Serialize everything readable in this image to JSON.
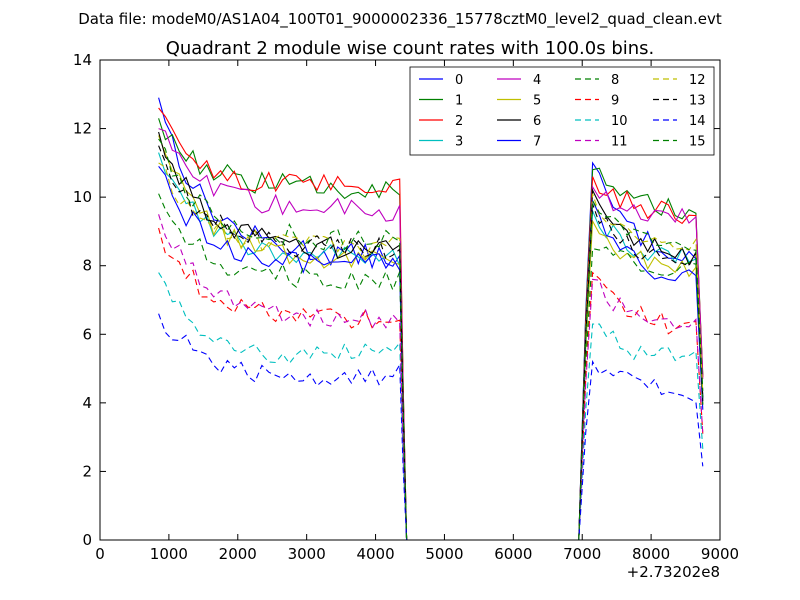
{
  "figure": {
    "suptitle": "Data file: modeM0/AS1A04_100T01_9000002336_15778cztM0_level2_quad_clean.evt",
    "title": "Quadrant 2 module wise count rates with 100.0s bins.",
    "x_offset_label": "+2.73202e8"
  },
  "chart_data": {
    "type": "line",
    "title": "Quadrant 2 module wise count rates with 100.0s bins.",
    "xlabel": "",
    "ylabel": "",
    "xlim": [
      0,
      9000
    ],
    "ylim": [
      0,
      14
    ],
    "xticks": [
      0,
      1000,
      2000,
      3000,
      4000,
      5000,
      6000,
      7000,
      8000,
      9000
    ],
    "yticks": [
      0,
      2,
      4,
      6,
      8,
      10,
      12,
      14
    ],
    "x_offset": "+2.73202e8",
    "grid": false,
    "legend_position": "top-right",
    "legend_columns": 4,
    "segments": [
      {
        "x0": 850,
        "x1": 4350,
        "dx": 100,
        "drop_x": 4450
      },
      {
        "x0": 7150,
        "x1": 8650,
        "dx": 100,
        "rise_x": 6950
      }
    ],
    "series": [
      {
        "name": "0",
        "color": "#0000ff",
        "dash": "solid",
        "start": 12.9,
        "plateau1": 8.6,
        "end1": 8.2,
        "start2": 11.0,
        "end2": 8.3
      },
      {
        "name": "1",
        "color": "#008000",
        "dash": "solid",
        "start": 12.3,
        "plateau1": 10.2,
        "end1": 10.3,
        "start2": 10.8,
        "end2": 9.6
      },
      {
        "name": "2",
        "color": "#ff0000",
        "dash": "solid",
        "start": 12.6,
        "plateau1": 10.1,
        "end1": 10.4,
        "start2": 10.6,
        "end2": 9.5
      },
      {
        "name": "3",
        "color": "#00bfbf",
        "dash": "solid",
        "start": 11.3,
        "plateau1": 8.4,
        "end1": 8.2,
        "start2": 9.6,
        "end2": 8.2
      },
      {
        "name": "4",
        "color": "#bf00bf",
        "dash": "solid",
        "start": 12.0,
        "plateau1": 9.7,
        "end1": 9.6,
        "start2": 10.3,
        "end2": 9.4
      },
      {
        "name": "5",
        "color": "#bfbf00",
        "dash": "solid",
        "start": 11.8,
        "plateau1": 8.2,
        "end1": 8.2,
        "start2": 9.3,
        "end2": 7.9
      },
      {
        "name": "6",
        "color": "#000000",
        "dash": "solid",
        "start": 11.9,
        "plateau1": 8.8,
        "end1": 8.4,
        "start2": 10.2,
        "end2": 8.3
      },
      {
        "name": "7",
        "color": "#0000ff",
        "dash": "solid",
        "start": 10.9,
        "plateau1": 8.1,
        "end1": 8.0,
        "start2": 9.9,
        "end2": 7.6
      },
      {
        "name": "8",
        "color": "#008000",
        "dash": "dashed",
        "start": 10.1,
        "plateau1": 7.6,
        "end1": 7.6,
        "start2": 8.5,
        "end2": 7.9
      },
      {
        "name": "9",
        "color": "#ff0000",
        "dash": "dashed",
        "start": 9.1,
        "plateau1": 6.4,
        "end1": 6.5,
        "start2": 7.8,
        "end2": 6.2
      },
      {
        "name": "10",
        "color": "#00bfbf",
        "dash": "dashed",
        "start": 7.8,
        "plateau1": 5.2,
        "end1": 5.5,
        "start2": 6.3,
        "end2": 5.3
      },
      {
        "name": "11",
        "color": "#bf00bf",
        "dash": "dashed",
        "start": 9.5,
        "plateau1": 6.5,
        "end1": 6.4,
        "start2": 7.6,
        "end2": 6.2
      },
      {
        "name": "12",
        "color": "#bfbf00",
        "dash": "dashed",
        "start": 11.0,
        "plateau1": 8.6,
        "end1": 8.5,
        "start2": 10.1,
        "end2": 8.5
      },
      {
        "name": "13",
        "color": "#000000",
        "dash": "dashed",
        "start": 11.5,
        "plateau1": 8.5,
        "end1": 8.5,
        "start2": 9.8,
        "end2": 8.1
      },
      {
        "name": "14",
        "color": "#0000ff",
        "dash": "dashed",
        "start": 6.6,
        "plateau1": 4.7,
        "end1": 4.8,
        "start2": 5.2,
        "end2": 4.3
      },
      {
        "name": "15",
        "color": "#008000",
        "dash": "dashed",
        "start": 11.7,
        "plateau1": 8.9,
        "end1": 8.7,
        "start2": 9.9,
        "end2": 8.7
      }
    ]
  }
}
